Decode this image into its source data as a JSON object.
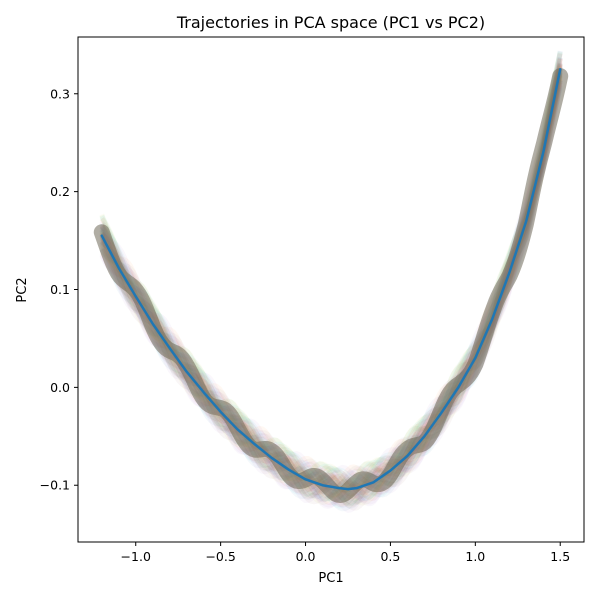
{
  "chart_data": {
    "type": "line",
    "title": "Trajectories in PCA space (PC1 vs PC2)",
    "xlabel": "PC1",
    "ylabel": "PC2",
    "xlim": [
      -1.34,
      1.64
    ],
    "ylim": [
      -0.158,
      0.358
    ],
    "x_ticks": [
      -1.0,
      -0.5,
      0.0,
      0.5,
      1.0,
      1.5
    ],
    "x_tick_labels": [
      "−1.0",
      "−0.5",
      "0.0",
      "0.5",
      "1.0",
      "1.5"
    ],
    "y_ticks": [
      -0.1,
      0.0,
      0.1,
      0.2,
      0.3
    ],
    "y_tick_labels": [
      "−0.1",
      "0.0",
      "0.1",
      "0.2",
      "0.3"
    ],
    "grid": false,
    "series": [
      {
        "color": "#1f77b4",
        "x": [
          -1.2,
          -1.1,
          -1.0,
          -0.9,
          -0.8,
          -0.7,
          -0.6,
          -0.5,
          -0.4,
          -0.3,
          -0.2,
          -0.1,
          0.0,
          0.1,
          0.2,
          0.25,
          0.3,
          0.4,
          0.5,
          0.6,
          0.7,
          0.8,
          0.9,
          1.0,
          1.1,
          1.2,
          1.3,
          1.4,
          1.5
        ],
        "y": [
          0.155,
          0.122,
          0.093,
          0.065,
          0.04,
          0.016,
          -0.005,
          -0.025,
          -0.043,
          -0.058,
          -0.072,
          -0.084,
          -0.094,
          -0.1,
          -0.103,
          -0.104,
          -0.103,
          -0.097,
          -0.085,
          -0.07,
          -0.05,
          -0.026,
          0.0,
          0.03,
          0.07,
          0.117,
          0.17,
          0.24,
          0.325
        ]
      }
    ],
    "ensemble": {
      "description": "",
      "colors": [
        "#1f77b4",
        "#ff7f0e",
        "#2ca02c",
        "#d62728",
        "#9467bd",
        "#8c564b",
        "#e377c2",
        "#7f7f7f",
        "#bcbd22",
        "#17becf"
      ]
    }
  }
}
